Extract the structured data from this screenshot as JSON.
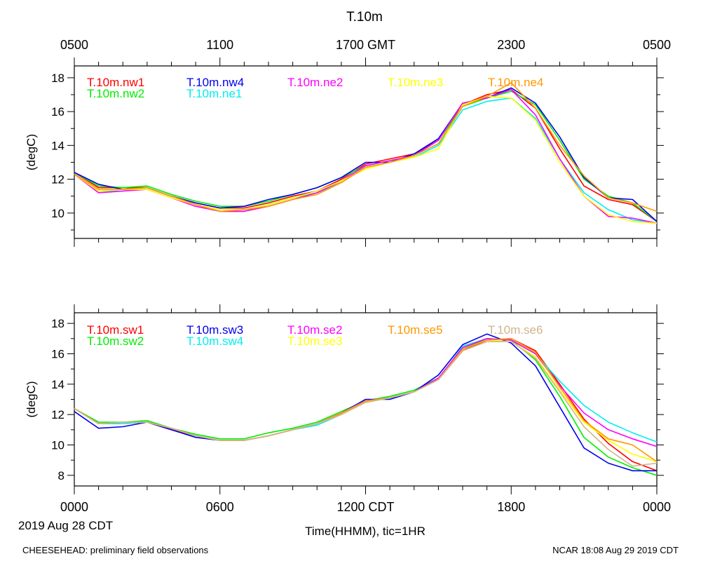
{
  "figure": {
    "title": "T.10m",
    "xlabel": "Time(HHMM), tic=1HR",
    "date_label": "2019 Aug 28 CDT",
    "footer_left": "CHEESEHEAD: preliminary field observations",
    "footer_right": "NCAR 18:08 Aug 29 2019 CDT",
    "top_ticks": [
      "0500",
      "1100",
      "1700 GMT",
      "2300",
      "0500"
    ],
    "bottom_ticks": [
      "0000",
      "0600",
      "1200 CDT",
      "1800",
      "0000"
    ]
  },
  "chart_data": [
    {
      "type": "line",
      "panel": "top",
      "title": "T.10m",
      "xlabel": "Time(HHMM), tic=1HR",
      "ylabel": "(degC)",
      "x_unit": "hours since 2019-08-28 00:00 CDT",
      "xlim": [
        0,
        24
      ],
      "ylim": [
        8.5,
        18.7
      ],
      "yticks": [
        10,
        12,
        14,
        16,
        18
      ],
      "x": [
        0,
        1,
        2,
        3,
        4,
        5,
        6,
        7,
        8,
        9,
        10,
        11,
        12,
        13,
        14,
        15,
        16,
        17,
        18,
        19,
        20,
        21,
        22,
        23,
        24
      ],
      "series": [
        {
          "name": "T.10m.nw1",
          "color": "#ff0000",
          "values": [
            12.4,
            11.5,
            11.5,
            11.5,
            11.0,
            10.6,
            10.3,
            10.3,
            10.6,
            11.0,
            11.3,
            12.0,
            12.9,
            13.2,
            13.5,
            14.3,
            16.4,
            17.0,
            17.3,
            16.2,
            13.8,
            11.6,
            10.8,
            10.5,
            9.5
          ]
        },
        {
          "name": "T.10m.nw2",
          "color": "#00ee00",
          "values": [
            12.4,
            11.6,
            11.5,
            11.6,
            11.1,
            10.7,
            10.4,
            10.4,
            10.7,
            11.1,
            11.5,
            12.1,
            12.8,
            13.1,
            13.4,
            14.3,
            16.3,
            16.8,
            17.2,
            16.4,
            14.3,
            12.0,
            11.0,
            10.6,
            9.5
          ]
        },
        {
          "name": "T.10m.nw4",
          "color": "#0000ee",
          "values": [
            12.4,
            11.7,
            11.4,
            11.5,
            11.0,
            10.6,
            10.3,
            10.4,
            10.8,
            11.1,
            11.5,
            12.1,
            13.0,
            13.0,
            13.5,
            14.4,
            16.5,
            16.8,
            17.4,
            16.5,
            14.5,
            12.1,
            10.9,
            10.8,
            9.5
          ]
        },
        {
          "name": "T.10m.ne1",
          "color": "#00eeee",
          "values": [
            12.3,
            11.3,
            11.3,
            11.5,
            11.0,
            10.5,
            10.1,
            10.1,
            10.5,
            10.9,
            11.2,
            11.8,
            12.7,
            13.0,
            13.3,
            14.0,
            16.1,
            16.6,
            16.8,
            15.6,
            13.2,
            11.2,
            10.2,
            9.6,
            9.4
          ]
        },
        {
          "name": "T.10m.ne2",
          "color": "#ff00ff",
          "values": [
            12.3,
            11.2,
            11.3,
            11.4,
            10.9,
            10.4,
            10.1,
            10.1,
            10.4,
            10.8,
            11.2,
            11.9,
            12.8,
            13.1,
            13.4,
            14.3,
            16.5,
            16.8,
            17.3,
            15.8,
            13.2,
            11.0,
            9.8,
            9.7,
            9.4
          ]
        },
        {
          "name": "T.10m.ne3",
          "color": "#ffff00",
          "values": [
            12.3,
            11.3,
            11.4,
            11.4,
            10.9,
            10.5,
            10.2,
            10.2,
            10.5,
            10.9,
            11.3,
            11.9,
            12.6,
            13.0,
            13.3,
            13.8,
            16.4,
            16.9,
            16.8,
            15.5,
            13.0,
            11.0,
            9.9,
            9.5,
            9.4
          ]
        },
        {
          "name": "T.10m.ne4",
          "color": "#ff9900",
          "values": [
            12.3,
            11.4,
            11.4,
            11.5,
            11.0,
            10.5,
            10.1,
            10.2,
            10.4,
            10.8,
            11.1,
            11.8,
            12.7,
            13.0,
            13.4,
            14.1,
            16.3,
            16.9,
            17.7,
            16.2,
            14.0,
            12.2,
            10.9,
            10.6,
            10.1
          ]
        }
      ]
    },
    {
      "type": "line",
      "panel": "bottom",
      "ylabel": "(degC)",
      "x_unit": "hours since 2019-08-28 00:00 CDT",
      "xlim": [
        0,
        24
      ],
      "ylim": [
        7.3,
        18.7
      ],
      "yticks": [
        8,
        10,
        12,
        14,
        16,
        18
      ],
      "x": [
        0,
        1,
        2,
        3,
        4,
        5,
        6,
        7,
        8,
        9,
        10,
        11,
        12,
        13,
        14,
        15,
        16,
        17,
        18,
        19,
        20,
        21,
        22,
        23,
        24
      ],
      "series": [
        {
          "name": "T.10m.sw1",
          "color": "#ff0000",
          "values": [
            12.4,
            11.4,
            11.5,
            11.5,
            11.0,
            10.6,
            10.3,
            10.3,
            10.6,
            11.0,
            11.4,
            12.1,
            12.9,
            13.1,
            13.5,
            14.3,
            16.2,
            16.9,
            17.0,
            16.2,
            14.0,
            11.7,
            10.1,
            8.9,
            8.3
          ]
        },
        {
          "name": "T.10m.sw2",
          "color": "#00ee00",
          "values": [
            12.4,
            11.5,
            11.5,
            11.6,
            11.1,
            10.7,
            10.4,
            10.4,
            10.8,
            11.1,
            11.5,
            12.2,
            12.9,
            13.2,
            13.6,
            14.4,
            16.3,
            17.0,
            16.9,
            15.6,
            13.2,
            10.5,
            9.2,
            8.5,
            8.0
          ]
        },
        {
          "name": "T.10m.sw3",
          "color": "#0000ee",
          "values": [
            12.2,
            11.1,
            11.2,
            11.5,
            11.0,
            10.5,
            10.3,
            10.3,
            10.6,
            11.0,
            11.4,
            12.1,
            13.0,
            13.0,
            13.5,
            14.6,
            16.6,
            17.3,
            16.7,
            15.2,
            12.5,
            9.8,
            8.8,
            8.3,
            8.3
          ]
        },
        {
          "name": "T.10m.sw4",
          "color": "#00eeee",
          "values": [
            12.4,
            11.4,
            11.4,
            11.5,
            11.1,
            10.6,
            10.3,
            10.3,
            10.6,
            11.0,
            11.3,
            12.0,
            12.8,
            13.1,
            13.5,
            14.3,
            16.5,
            17.0,
            16.9,
            16.0,
            14.2,
            12.6,
            11.5,
            10.8,
            10.2
          ]
        },
        {
          "name": "T.10m.se2",
          "color": "#ff00ff",
          "values": [
            12.4,
            11.4,
            11.5,
            11.5,
            11.1,
            10.6,
            10.3,
            10.3,
            10.6,
            11.0,
            11.4,
            12.1,
            12.9,
            13.1,
            13.5,
            14.4,
            16.4,
            17.0,
            16.9,
            16.0,
            13.9,
            12.1,
            11.0,
            10.4,
            9.9
          ]
        },
        {
          "name": "T.10m.se3",
          "color": "#ffff00",
          "values": [
            12.4,
            11.4,
            11.5,
            11.5,
            11.1,
            10.6,
            10.3,
            10.3,
            10.6,
            11.0,
            11.4,
            12.0,
            12.8,
            13.1,
            13.5,
            14.3,
            16.3,
            16.9,
            16.8,
            15.8,
            13.6,
            11.5,
            10.3,
            9.4,
            8.9
          ]
        },
        {
          "name": "T.10m.se5",
          "color": "#ff9900",
          "values": [
            12.4,
            11.4,
            11.5,
            11.5,
            11.1,
            10.6,
            10.3,
            10.3,
            10.6,
            11.0,
            11.4,
            12.1,
            12.9,
            13.1,
            13.5,
            14.3,
            16.3,
            16.9,
            17.0,
            16.1,
            13.8,
            11.6,
            10.4,
            10.0,
            8.9
          ]
        },
        {
          "name": "T.10m.se6",
          "color": "#d2b48c",
          "values": [
            12.4,
            11.4,
            11.5,
            11.5,
            11.1,
            10.6,
            10.3,
            10.3,
            10.6,
            11.0,
            11.4,
            12.0,
            12.8,
            13.1,
            13.5,
            14.3,
            16.2,
            16.8,
            16.8,
            15.7,
            13.5,
            11.2,
            9.7,
            8.6,
            8.8
          ]
        }
      ]
    }
  ]
}
